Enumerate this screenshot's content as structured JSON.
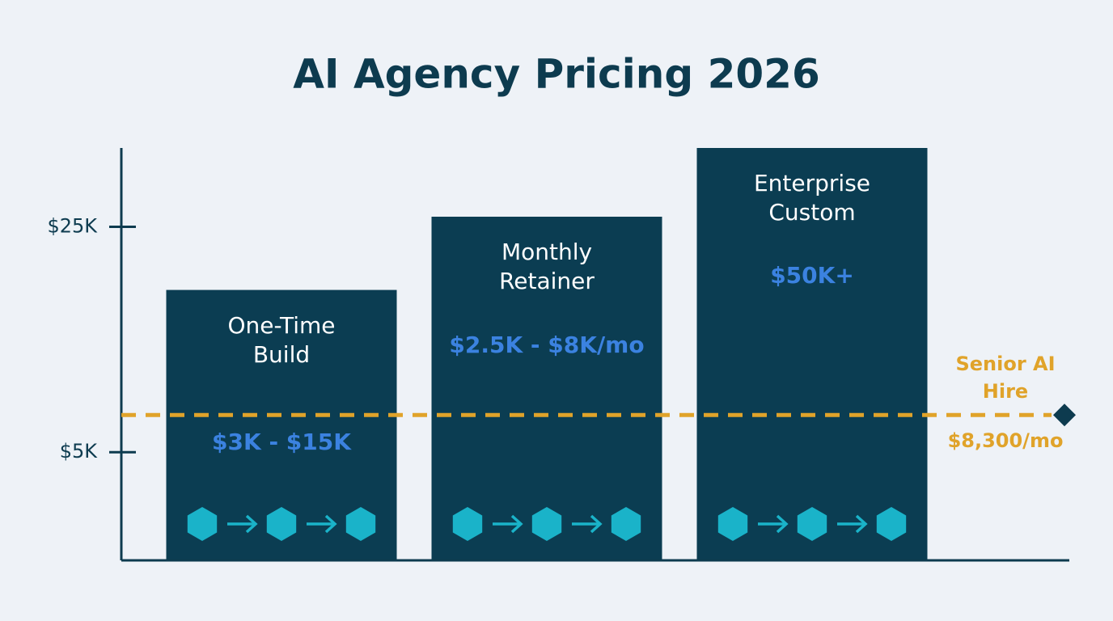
{
  "chart_data": {
    "type": "bar",
    "title": "AI Agency Pricing 2026",
    "categories": [
      "One-Time Build",
      "Monthly Retainer",
      "Enterprise Custom"
    ],
    "values": [
      19400,
      25900,
      32000
    ],
    "annotations": [
      "$3K - $15K",
      "$2.5K - $8K/mo",
      "$50K+"
    ],
    "color": "#0b3d52",
    "annotation_color": "#3b82e0",
    "ylim": [
      -4600,
      32000
    ],
    "yticks": [
      {
        "value": 25000,
        "label": "$25K"
      },
      {
        "value": 5000,
        "label": "$5K"
      }
    ],
    "reference": {
      "label": "Senior AI Hire",
      "value": 8300,
      "value_label": "$8,300/mo",
      "color": "#e0a32a"
    }
  }
}
